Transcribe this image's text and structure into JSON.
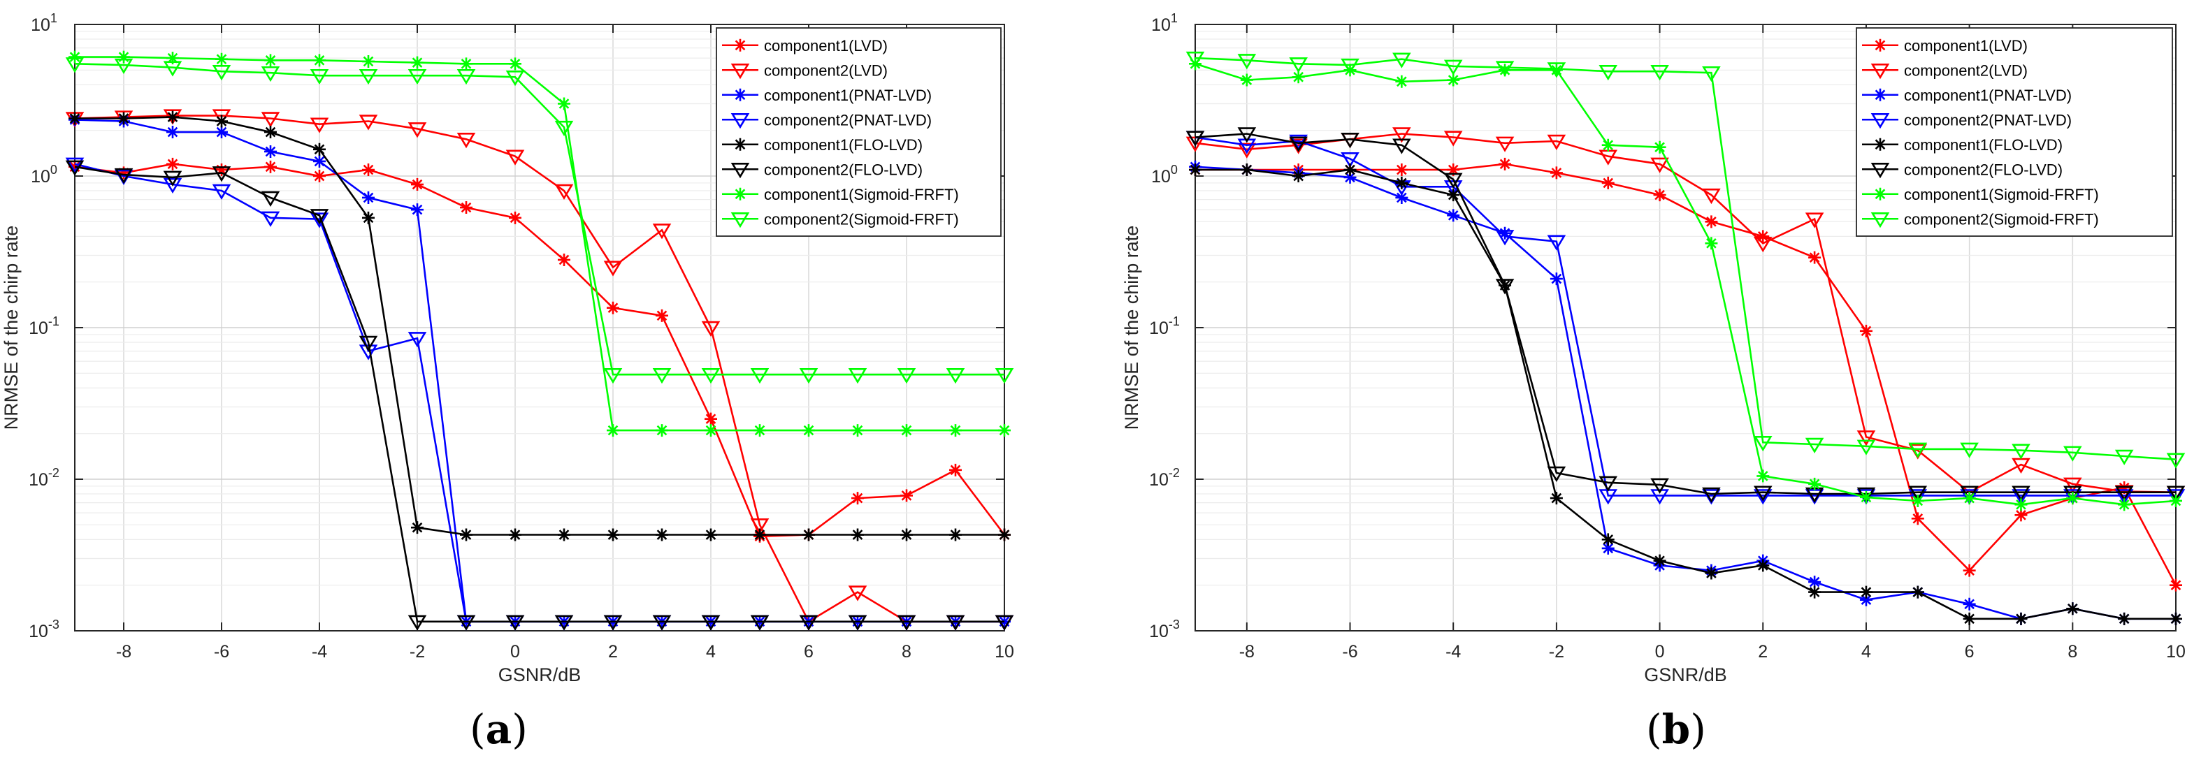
{
  "chart_data": [
    {
      "id": "a",
      "type": "line",
      "panel_label": "(a)",
      "panel_letter": "a",
      "xlabel": "GSNR/dB",
      "ylabel": "NRMSE of the chirp rate",
      "xlim": [
        -9,
        10
      ],
      "ylim": [
        0.001,
        10
      ],
      "yscale": "log",
      "xticks": [
        -8,
        -6,
        -4,
        -2,
        0,
        2,
        4,
        6,
        8,
        10
      ],
      "yticks": [
        {
          "exp": "-3",
          "v": 0.001
        },
        {
          "exp": "-2",
          "v": 0.01
        },
        {
          "exp": "-1",
          "v": 0.1
        },
        {
          "exp": "0",
          "v": 1
        },
        {
          "exp": "1",
          "v": 10
        }
      ],
      "grid": true,
      "legend_position": "top-right",
      "x": [
        -9,
        -8,
        -7,
        -6,
        -5,
        -4,
        -3,
        -2,
        -1,
        0,
        1,
        2,
        3,
        4,
        5,
        6,
        7,
        8,
        9,
        10
      ],
      "series": [
        {
          "name": "component1(LVD)",
          "color": "#ff0000",
          "marker": "star",
          "values": [
            1.15,
            1.05,
            1.2,
            1.1,
            1.15,
            1.0,
            1.1,
            0.88,
            0.62,
            0.53,
            0.28,
            0.135,
            0.12,
            0.025,
            0.0042,
            0.0043,
            0.0075,
            0.0078,
            0.0115,
            0.0043
          ]
        },
        {
          "name": "component2(LVD)",
          "color": "#ff0000",
          "marker": "triangle-down",
          "values": [
            2.4,
            2.45,
            2.5,
            2.5,
            2.4,
            2.2,
            2.3,
            2.05,
            1.75,
            1.35,
            0.8,
            0.25,
            0.44,
            0.1,
            0.005,
            0.00115,
            0.0018,
            0.00115,
            0.00115,
            0.00115
          ]
        },
        {
          "name": "component1(PNAT-LVD)",
          "color": "#0000ff",
          "marker": "star",
          "values": [
            2.35,
            2.3,
            1.95,
            1.95,
            1.45,
            1.25,
            0.72,
            0.6,
            0.00115,
            0.00115,
            0.00115,
            0.00115,
            0.00115,
            0.00115,
            0.00115,
            0.00115,
            0.00115,
            0.00115,
            0.00115,
            0.00115
          ]
        },
        {
          "name": "component2(PNAT-LVD)",
          "color": "#0000ff",
          "marker": "triangle-down",
          "values": [
            1.2,
            1.0,
            0.88,
            0.8,
            0.53,
            0.52,
            0.07,
            0.085,
            0.00115,
            0.00115,
            0.00115,
            0.00115,
            0.00115,
            0.00115,
            0.00115,
            0.00115,
            0.00115,
            0.00115,
            0.00115,
            0.00115
          ]
        },
        {
          "name": "component1(FLO-LVD)",
          "color": "#000000",
          "marker": "star",
          "values": [
            2.4,
            2.4,
            2.45,
            2.3,
            1.95,
            1.5,
            0.53,
            0.0048,
            0.0043,
            0.0043,
            0.0043,
            0.0043,
            0.0043,
            0.0043,
            0.0043,
            0.0043,
            0.0043,
            0.0043,
            0.0043,
            0.0043
          ]
        },
        {
          "name": "component2(FLO-LVD)",
          "color": "#000000",
          "marker": "triangle-down",
          "values": [
            1.15,
            1.02,
            0.98,
            1.05,
            0.72,
            0.55,
            0.08,
            0.00115,
            0.00115,
            0.00115,
            0.00115,
            0.00115,
            0.00115,
            0.00115,
            0.00115,
            0.00115,
            0.00115,
            0.00115,
            0.00115,
            0.00115
          ]
        },
        {
          "name": "component1(Sigmoid-FRFT)",
          "color": "#00ff00",
          "marker": "star",
          "values": [
            6.1,
            6.1,
            6.0,
            5.9,
            5.8,
            5.8,
            5.7,
            5.6,
            5.5,
            5.5,
            3.0,
            0.021,
            0.021,
            0.021,
            0.021,
            0.021,
            0.021,
            0.021,
            0.021,
            0.021
          ]
        },
        {
          "name": "component2(Sigmoid-FRFT)",
          "color": "#00ff00",
          "marker": "triangle-down",
          "values": [
            5.5,
            5.4,
            5.2,
            4.9,
            4.8,
            4.6,
            4.6,
            4.6,
            4.6,
            4.5,
            2.1,
            0.049,
            0.049,
            0.049,
            0.049,
            0.049,
            0.049,
            0.049,
            0.049,
            0.049
          ]
        }
      ]
    },
    {
      "id": "b",
      "type": "line",
      "panel_label": "(b)",
      "panel_letter": "b",
      "xlabel": "GSNR/dB",
      "ylabel": "NRMSE of the chirp rate",
      "xlim": [
        -9,
        10
      ],
      "ylim": [
        0.001,
        10
      ],
      "yscale": "log",
      "xticks": [
        -8,
        -6,
        -4,
        -2,
        0,
        2,
        4,
        6,
        8,
        10
      ],
      "yticks": [
        {
          "exp": "-3",
          "v": 0.001
        },
        {
          "exp": "-2",
          "v": 0.01
        },
        {
          "exp": "-1",
          "v": 0.1
        },
        {
          "exp": "0",
          "v": 1
        },
        {
          "exp": "1",
          "v": 10
        }
      ],
      "grid": true,
      "legend_position": "top-right",
      "x": [
        -9,
        -8,
        -7,
        -6,
        -5,
        -4,
        -3,
        -2,
        -1,
        0,
        1,
        2,
        3,
        4,
        5,
        6,
        7,
        8,
        9,
        10
      ],
      "series": [
        {
          "name": "component1(LVD)",
          "color": "#ff0000",
          "marker": "star",
          "values": [
            1.1,
            1.1,
            1.1,
            1.1,
            1.1,
            1.1,
            1.2,
            1.05,
            0.9,
            0.75,
            0.5,
            0.4,
            0.29,
            0.095,
            0.0055,
            0.0025,
            0.0058,
            0.0075,
            0.0088,
            0.002
          ]
        },
        {
          "name": "component2(LVD)",
          "color": "#ff0000",
          "marker": "triangle-down",
          "values": [
            1.65,
            1.5,
            1.6,
            1.75,
            1.9,
            1.8,
            1.65,
            1.7,
            1.35,
            1.2,
            0.75,
            0.36,
            0.52,
            0.019,
            0.0155,
            0.0082,
            0.0125,
            0.0093,
            0.0083,
            0.0082
          ]
        },
        {
          "name": "component1(PNAT-LVD)",
          "color": "#0000ff",
          "marker": "star",
          "values": [
            1.15,
            1.1,
            1.05,
            0.98,
            0.72,
            0.55,
            0.42,
            0.21,
            0.0035,
            0.0027,
            0.0025,
            0.0029,
            0.0021,
            0.0016,
            0.0018,
            0.0015,
            0.0012,
            0.0014,
            0.0012,
            0.0012
          ]
        },
        {
          "name": "component2(PNAT-LVD)",
          "color": "#0000ff",
          "marker": "triangle-down",
          "values": [
            1.8,
            1.6,
            1.7,
            1.3,
            0.85,
            0.85,
            0.4,
            0.37,
            0.0078,
            0.0078,
            0.0078,
            0.0078,
            0.0078,
            0.0078,
            0.0078,
            0.0078,
            0.0078,
            0.0078,
            0.0078,
            0.0078
          ]
        },
        {
          "name": "component1(FLO-LVD)",
          "color": "#000000",
          "marker": "star",
          "values": [
            1.1,
            1.1,
            1.0,
            1.1,
            0.9,
            0.75,
            0.19,
            0.0075,
            0.004,
            0.0029,
            0.0024,
            0.0027,
            0.0018,
            0.0018,
            0.0018,
            0.0012,
            0.0012,
            0.0014,
            0.0012,
            0.0012
          ]
        },
        {
          "name": "component2(FLO-LVD)",
          "color": "#000000",
          "marker": "triangle-down",
          "values": [
            1.8,
            1.9,
            1.65,
            1.75,
            1.6,
            0.95,
            0.19,
            0.011,
            0.0095,
            0.0092,
            0.008,
            0.0082,
            0.008,
            0.008,
            0.0082,
            0.0082,
            0.0082,
            0.0082,
            0.0082,
            0.0082
          ]
        },
        {
          "name": "component1(Sigmoid-FRFT)",
          "color": "#00ff00",
          "marker": "star",
          "values": [
            5.5,
            4.3,
            4.5,
            5.0,
            4.2,
            4.3,
            5.0,
            5.0,
            1.6,
            1.55,
            0.36,
            0.0105,
            0.0093,
            0.0076,
            0.0072,
            0.0075,
            0.0068,
            0.0075,
            0.0068,
            0.0072
          ]
        },
        {
          "name": "component2(Sigmoid-FRFT)",
          "color": "#00ff00",
          "marker": "triangle-down",
          "values": [
            6.0,
            5.8,
            5.5,
            5.4,
            5.9,
            5.3,
            5.2,
            5.1,
            4.9,
            4.9,
            4.8,
            0.0175,
            0.017,
            0.0165,
            0.0158,
            0.0158,
            0.0155,
            0.015,
            0.0142,
            0.0135
          ]
        }
      ]
    }
  ]
}
